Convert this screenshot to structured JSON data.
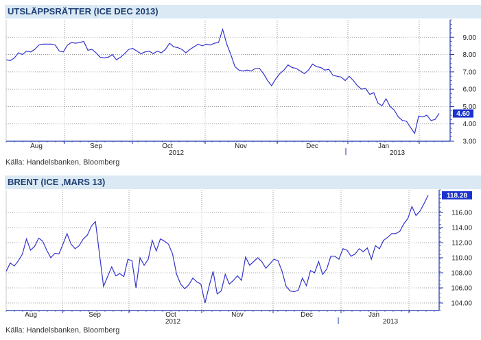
{
  "chart_data": [
    {
      "type": "line",
      "title": "UTSLÄPPSRÄTTER (ICE DEC 2013)",
      "source": "Källa: Handelsbanken, Bloomberg",
      "ylim": [
        3.0,
        10.0
      ],
      "yticks": [
        "3.00",
        "4.00",
        "5.00",
        "6.00",
        "7.00",
        "8.00",
        "9.00"
      ],
      "ytick_values": [
        3,
        4,
        5,
        6,
        7,
        8,
        9
      ],
      "months": [
        "Aug",
        "Sep",
        "Oct",
        "Nov",
        "Dec",
        "Jan"
      ],
      "years": [
        "2012",
        "2013"
      ],
      "last_value_label": "4.60",
      "last_value": 4.6,
      "grid": true,
      "line_color": "#3333cc",
      "series": [
        {
          "values": [
            7.7,
            7.65,
            7.8,
            8.1,
            8.0,
            8.2,
            8.15,
            8.3,
            8.55,
            8.6,
            8.6,
            8.6,
            8.55,
            8.2,
            8.15,
            8.55,
            8.7,
            8.65,
            8.7,
            8.75,
            8.25,
            8.3,
            8.1,
            7.85,
            7.8,
            7.85,
            8.0,
            7.7,
            7.85,
            8.05,
            8.3,
            8.35,
            8.2,
            8.05,
            8.15,
            8.2,
            8.05,
            8.2,
            8.1,
            8.3,
            8.65,
            8.45,
            8.4,
            8.3,
            8.1,
            8.3,
            8.45,
            8.6,
            8.5,
            8.6,
            8.55,
            8.65,
            8.7,
            9.45,
            8.6,
            8.0,
            7.3,
            7.1,
            7.05,
            7.1,
            7.05,
            7.2,
            7.2,
            6.9,
            6.5,
            6.2,
            6.6,
            6.9,
            7.1,
            7.4,
            7.25,
            7.2,
            7.05,
            6.9,
            7.1,
            7.45,
            7.3,
            7.25,
            7.1,
            7.15,
            6.8,
            6.75,
            6.7,
            6.5,
            6.75,
            6.5,
            6.2,
            6.0,
            6.05,
            5.7,
            5.8,
            5.2,
            5.05,
            5.45,
            5.0,
            4.8,
            4.4,
            4.2,
            4.15,
            3.8,
            3.45,
            4.45,
            4.4,
            4.5,
            4.2,
            4.25,
            4.6
          ]
        }
      ]
    },
    {
      "type": "line",
      "title": "BRENT (ICE ,MARS 13)",
      "source": "Källa: Handelsbanken, Bloomberg",
      "ylim": [
        103.0,
        119.0
      ],
      "yticks": [
        "104.00",
        "106.00",
        "108.00",
        "110.00",
        "112.00",
        "114.00",
        "116.00"
      ],
      "ytick_values": [
        104,
        106,
        108,
        110,
        112,
        114,
        116
      ],
      "months": [
        "Aug",
        "Sep",
        "Oct",
        "Nov",
        "Dec",
        "Jan"
      ],
      "years": [
        "2012",
        "2013"
      ],
      "last_value_label": "118.28",
      "last_value": 118.28,
      "grid": true,
      "line_color": "#3333cc",
      "series": [
        {
          "values": [
            108.2,
            109.3,
            108.9,
            109.6,
            110.5,
            112.5,
            111.0,
            111.5,
            112.6,
            112.2,
            111.0,
            110.0,
            110.6,
            110.5,
            111.8,
            113.2,
            111.8,
            111.2,
            111.6,
            112.5,
            113.0,
            114.2,
            114.8,
            110.5,
            106.2,
            107.5,
            108.8,
            107.6,
            107.9,
            107.5,
            109.8,
            109.6,
            106.0,
            110.0,
            109.0,
            109.8,
            112.3,
            110.9,
            112.5,
            112.2,
            111.8,
            110.5,
            107.8,
            106.5,
            105.9,
            106.4,
            107.3,
            106.8,
            106.5,
            104.0,
            106.2,
            108.2,
            105.2,
            105.6,
            107.8,
            106.5,
            107.0,
            107.6,
            107.0,
            110.1,
            109.0,
            109.5,
            110.0,
            109.5,
            108.6,
            109.2,
            109.8,
            109.6,
            108.2,
            106.2,
            105.6,
            105.5,
            105.7,
            107.3,
            106.3,
            108.3,
            108.0,
            109.5,
            107.8,
            108.5,
            110.2,
            110.2,
            109.8,
            111.2,
            111.0,
            110.2,
            110.5,
            111.2,
            110.8,
            111.3,
            109.8,
            111.6,
            111.2,
            112.3,
            112.7,
            113.2,
            113.2,
            113.5,
            114.5,
            115.2,
            116.8,
            115.6,
            116.2,
            117.2,
            118.28
          ]
        }
      ]
    }
  ]
}
